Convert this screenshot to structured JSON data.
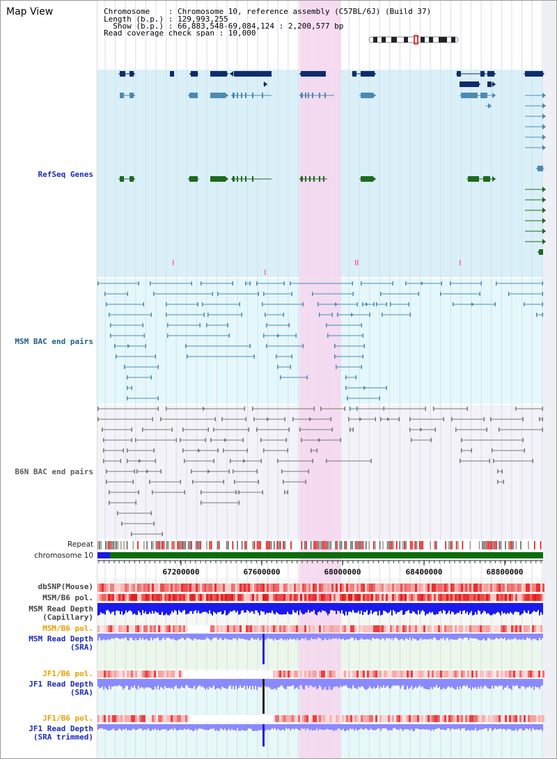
{
  "app": {
    "title": "Map View"
  },
  "info": {
    "chromosome_line": "Chromosome    : Chromosome 10, reference assembly (C57BL/6J) (Build 37)",
    "length_line": "Length (b.p.) : 129,993,255",
    "show_line": "  Show (b.p.) : 66,883,548-69,084,124 : 2,200,577 bp",
    "coverage_line": "Read coverage check span : 10,000"
  },
  "tracks": {
    "refseq": "RefSeq Genes",
    "msm_bac": "MSM BAC end pairs",
    "b6n_bac": "B6N BAC end pairs",
    "repeat": "Repeat",
    "chromosome": "chromosome 10",
    "dbsnp": "dbSNP(Mouse)",
    "msm_b6_pol": "MSM/B6 pol.",
    "msm_depth_cap_1": "MSM Read Depth",
    "msm_depth_cap_2": "(Capillary)",
    "msm_b6_pol_sra": "MSM/B6 pol.",
    "msm_depth_sra_1": "MSM Read Depth",
    "msm_depth_sra_2": "(SRA)",
    "jf1_b6_pol_1": "JF1/B6 pol.",
    "jf1_depth_sra_1": "JF1 Read Depth",
    "jf1_depth_sra_2": "(SRA)",
    "jf1_b6_pol_2": "JF1/B6 pol.",
    "jf1_depth_trim_1": "JF1 Read Depth",
    "jf1_depth_trim_2": "(SRA trimmed)"
  },
  "axis": {
    "ticks": [
      "67200000",
      "67600000",
      "68000000",
      "68400000",
      "68800000"
    ]
  },
  "colors": {
    "highlight": "#f6d6ef",
    "refseq_bg": "#d9f0f8",
    "msm_bg": "#e4f8fb",
    "b6n_bg": "#f2f2f8",
    "navy": "#0c2c6e",
    "steel": "#4a8bb2",
    "green": "#1d6a1d",
    "chrom_green": "#0a6e0a",
    "chrom_blue": "#1a1ae0"
  }
}
